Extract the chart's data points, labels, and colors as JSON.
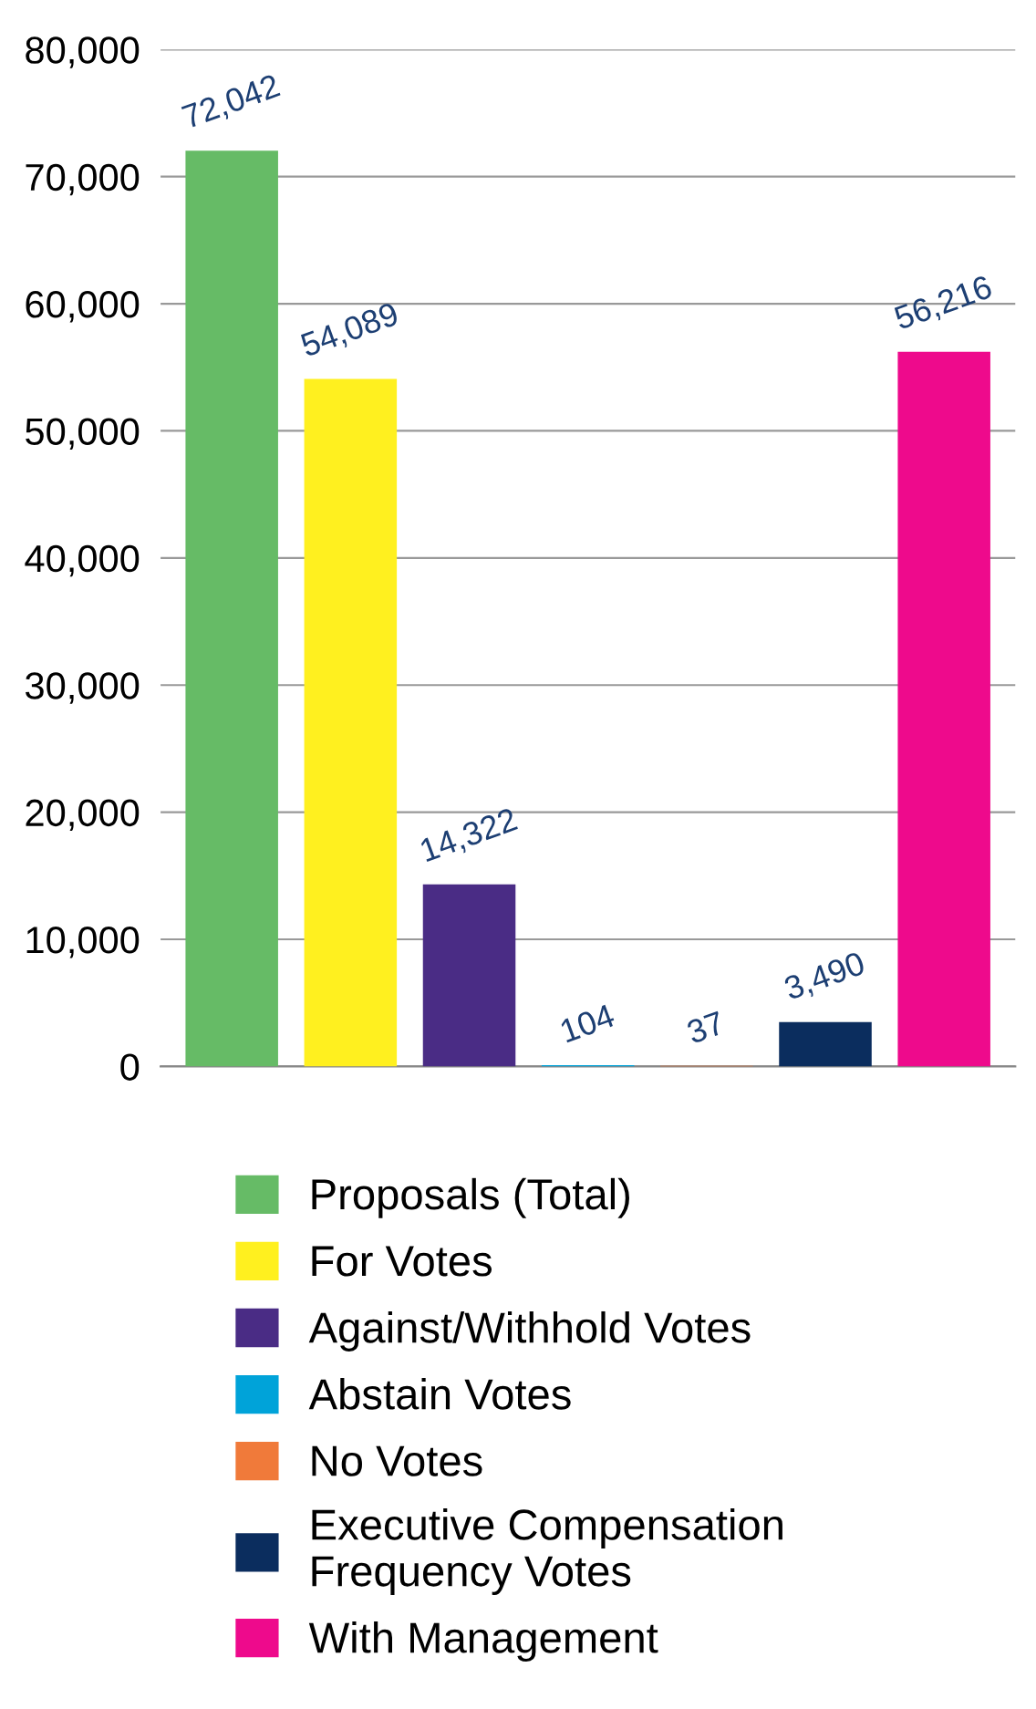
{
  "chart_data": {
    "type": "bar",
    "categories": [
      null,
      null,
      null,
      null,
      null,
      null,
      null
    ],
    "series": [
      {
        "name": "Proposals (Total)",
        "color": "#66bb66",
        "values": [
          72042,
          null,
          null,
          null,
          null,
          null,
          null
        ],
        "value_labels": [
          "72,042",
          null,
          null,
          null,
          null,
          null,
          null
        ]
      },
      {
        "name": "For Votes",
        "color": "#fff01f",
        "values": [
          null,
          54089,
          null,
          null,
          null,
          null,
          null
        ],
        "value_labels": [
          null,
          "54,089",
          null,
          null,
          null,
          null,
          null
        ]
      },
      {
        "name": "Against/Withhold Votes",
        "color": "#4a2c85",
        "values": [
          null,
          null,
          14322,
          null,
          null,
          null,
          null
        ],
        "value_labels": [
          null,
          null,
          "14,322",
          null,
          null,
          null,
          null
        ]
      },
      {
        "name": "Abstain Votes",
        "color": "#00a3d9",
        "values": [
          null,
          null,
          null,
          104,
          null,
          null,
          null
        ],
        "value_labels": [
          null,
          null,
          null,
          "104",
          null,
          null,
          null
        ]
      },
      {
        "name": "No Votes",
        "color": "#f07a3a",
        "values": [
          null,
          null,
          null,
          null,
          37,
          null,
          null
        ],
        "value_labels": [
          null,
          null,
          null,
          null,
          "37",
          null,
          null
        ]
      },
      {
        "name": "Executive Compensation\nFrequency Votes",
        "color": "#0b2d5e",
        "values": [
          null,
          null,
          null,
          null,
          null,
          3490,
          null
        ],
        "value_labels": [
          null,
          null,
          null,
          null,
          null,
          "3,490",
          null
        ]
      },
      {
        "name": "With Management",
        "color": "#ee0a8c",
        "values": [
          null,
          null,
          null,
          null,
          null,
          null,
          56216
        ],
        "value_labels": [
          null,
          null,
          null,
          null,
          null,
          null,
          "56,216"
        ]
      }
    ],
    "ylim": [
      0,
      80000
    ],
    "yticks": [
      {
        "value": 0,
        "label": "0"
      },
      {
        "value": 10000,
        "label": "10,000"
      },
      {
        "value": 20000,
        "label": "20,000"
      },
      {
        "value": 30000,
        "label": "30,000"
      },
      {
        "value": 40000,
        "label": "40,000"
      },
      {
        "value": 50000,
        "label": "50,000"
      },
      {
        "value": 60000,
        "label": "60,000"
      },
      {
        "value": 70000,
        "label": "70,000"
      },
      {
        "value": 80000,
        "label": "80,000"
      }
    ],
    "grid": "y",
    "legend": "bottom",
    "tick_labels": "y"
  }
}
